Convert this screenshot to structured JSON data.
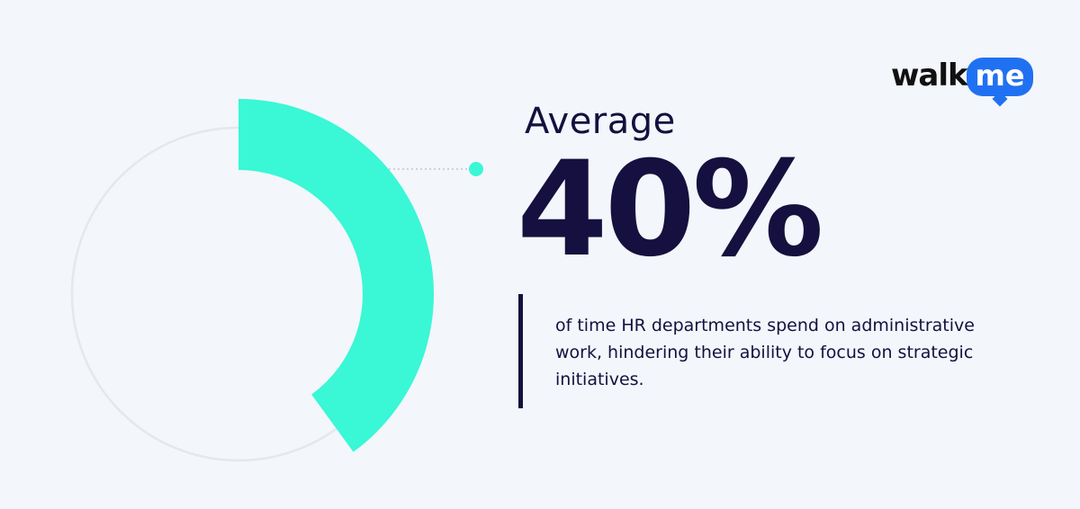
{
  "chart_data": {
    "type": "donut",
    "title": "Average",
    "values": [
      40
    ],
    "value_labels": [
      "40%"
    ],
    "color": "#3af7d6",
    "description": "of time HR departments spend on administrative work, hindering their ability to focus on strategic initiatives."
  },
  "logo": {
    "part1": "walk",
    "part2": "me"
  }
}
